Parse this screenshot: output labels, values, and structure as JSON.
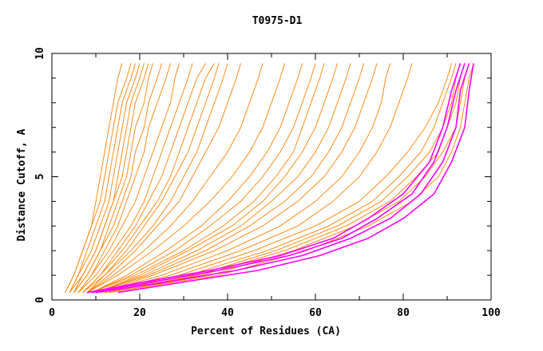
{
  "chart_data": {
    "type": "line",
    "title": "T0975-D1",
    "xlabel": "Percent of Residues (CA)",
    "ylabel": "Distance Cutoff, A",
    "xlim": [
      0,
      100
    ],
    "ylim": [
      0,
      10
    ],
    "x_ticks": [
      "0",
      "20",
      "40",
      "60",
      "80",
      "100"
    ],
    "y_ticks": [
      "0",
      "5",
      "10"
    ],
    "colors": {
      "orange": "#ff8000",
      "magenta": "#ff00ff",
      "axis": "#000000"
    },
    "series": [
      {
        "group": "orange",
        "x": [
          3,
          5,
          7,
          9,
          10,
          11,
          12,
          13,
          14,
          15,
          16
        ],
        "y": [
          0.3,
          1.0,
          2.0,
          3.0,
          4.0,
          5.0,
          6.0,
          7.0,
          8.0,
          9.0,
          9.6
        ]
      },
      {
        "group": "orange",
        "x": [
          3,
          5,
          7,
          9,
          11,
          12,
          13,
          14,
          15,
          17,
          18
        ],
        "y": [
          0.3,
          1.0,
          2.0,
          3.0,
          4.0,
          5.0,
          6.0,
          7.0,
          8.0,
          9.0,
          9.6
        ]
      },
      {
        "group": "orange",
        "x": [
          4,
          6,
          8,
          10,
          12,
          13,
          14,
          15,
          16,
          18,
          19
        ],
        "y": [
          0.3,
          1.0,
          2.0,
          3.0,
          4.0,
          5.0,
          6.0,
          7.0,
          8.0,
          9.0,
          9.6
        ]
      },
      {
        "group": "orange",
        "x": [
          4,
          6,
          9,
          11,
          13,
          14,
          15,
          16,
          17,
          19,
          20
        ],
        "y": [
          0.3,
          1.0,
          2.0,
          3.0,
          4.0,
          5.0,
          6.0,
          7.0,
          8.0,
          9.0,
          9.6
        ]
      },
      {
        "group": "orange",
        "x": [
          4,
          7,
          10,
          12,
          14,
          15,
          16,
          17,
          18,
          20,
          21
        ],
        "y": [
          0.3,
          1.0,
          2.0,
          3.0,
          4.0,
          5.0,
          6.0,
          7.0,
          8.0,
          9.0,
          9.6
        ]
      },
      {
        "group": "orange",
        "x": [
          5,
          7,
          10,
          12,
          14,
          16,
          17,
          18,
          19,
          21,
          22
        ],
        "y": [
          0.3,
          1.0,
          2.0,
          3.0,
          4.0,
          5.0,
          6.0,
          7.0,
          8.0,
          9.0,
          9.6
        ]
      },
      {
        "group": "orange",
        "x": [
          5,
          8,
          11,
          13,
          15,
          17,
          18,
          19,
          21,
          22,
          23
        ],
        "y": [
          0.3,
          1.0,
          2.0,
          3.0,
          4.0,
          5.0,
          6.0,
          7.0,
          8.0,
          9.0,
          9.6
        ]
      },
      {
        "group": "orange",
        "x": [
          5,
          8,
          11,
          14,
          16,
          18,
          19,
          21,
          22,
          24,
          25
        ],
        "y": [
          0.3,
          1.0,
          2.0,
          3.0,
          4.0,
          5.0,
          6.0,
          7.0,
          8.0,
          9.0,
          9.6
        ]
      },
      {
        "group": "orange",
        "x": [
          6,
          9,
          12,
          15,
          17,
          19,
          21,
          22,
          24,
          26,
          27
        ],
        "y": [
          0.3,
          1.0,
          2.0,
          3.0,
          4.0,
          5.0,
          6.0,
          7.0,
          8.0,
          9.0,
          9.6
        ]
      },
      {
        "group": "orange",
        "x": [
          6,
          9,
          13,
          16,
          19,
          21,
          23,
          25,
          27,
          28,
          29
        ],
        "y": [
          0.3,
          1.0,
          2.0,
          3.0,
          4.0,
          5.0,
          6.0,
          7.0,
          8.0,
          9.0,
          9.6
        ]
      },
      {
        "group": "orange",
        "x": [
          6,
          10,
          14,
          18,
          21,
          23,
          25,
          27,
          29,
          31,
          32
        ],
        "y": [
          0.3,
          1.0,
          2.0,
          3.0,
          4.0,
          5.0,
          6.0,
          7.0,
          8.0,
          9.0,
          9.6
        ]
      },
      {
        "group": "orange",
        "x": [
          7,
          11,
          15,
          19,
          22,
          25,
          27,
          29,
          31,
          33,
          35
        ],
        "y": [
          0.3,
          1.0,
          2.0,
          3.0,
          4.0,
          5.0,
          6.0,
          7.0,
          8.0,
          9.0,
          9.6
        ]
      },
      {
        "group": "orange",
        "x": [
          7,
          11,
          16,
          20,
          24,
          27,
          29,
          31,
          33,
          35,
          37
        ],
        "y": [
          0.3,
          1.0,
          2.0,
          3.0,
          4.0,
          5.0,
          6.0,
          7.0,
          8.0,
          9.0,
          9.6
        ]
      },
      {
        "group": "orange",
        "x": [
          7,
          12,
          17,
          21,
          25,
          28,
          31,
          33,
          35,
          37,
          38
        ],
        "y": [
          0.3,
          1.0,
          2.0,
          3.0,
          4.0,
          5.0,
          6.0,
          7.0,
          8.0,
          9.0,
          9.6
        ]
      },
      {
        "group": "orange",
        "x": [
          8,
          12,
          18,
          23,
          27,
          30,
          33,
          35,
          37,
          39,
          40
        ],
        "y": [
          0.3,
          1.0,
          2.0,
          3.0,
          4.0,
          5.0,
          6.0,
          7.0,
          8.0,
          9.0,
          9.6
        ]
      },
      {
        "group": "orange",
        "x": [
          8,
          13,
          19,
          24,
          29,
          32,
          35,
          38,
          40,
          42,
          43
        ],
        "y": [
          0.3,
          1.0,
          2.0,
          3.0,
          4.0,
          5.0,
          6.0,
          7.0,
          8.0,
          9.0,
          9.6
        ]
      },
      {
        "group": "orange",
        "x": [
          8,
          14,
          21,
          27,
          32,
          36,
          40,
          43,
          45,
          47,
          48
        ],
        "y": [
          0.3,
          1.0,
          2.0,
          3.0,
          4.0,
          5.0,
          6.0,
          7.0,
          8.0,
          9.0,
          9.6
        ]
      },
      {
        "group": "orange",
        "x": [
          8,
          15,
          23,
          30,
          36,
          41,
          45,
          48,
          50,
          52,
          53
        ],
        "y": [
          0.3,
          1.0,
          2.0,
          3.0,
          4.0,
          5.0,
          6.0,
          7.0,
          8.0,
          9.0,
          9.6
        ]
      },
      {
        "group": "orange",
        "x": [
          9,
          17,
          26,
          34,
          40,
          45,
          49,
          52,
          54,
          56,
          57
        ],
        "y": [
          0.3,
          1.0,
          2.0,
          3.0,
          4.0,
          5.0,
          6.0,
          7.0,
          8.0,
          9.0,
          9.6
        ]
      },
      {
        "group": "orange",
        "x": [
          9,
          18,
          28,
          36,
          43,
          48,
          52,
          55,
          57,
          59,
          60
        ],
        "y": [
          0.3,
          1.0,
          2.0,
          3.0,
          4.0,
          5.0,
          6.0,
          7.0,
          8.0,
          9.0,
          9.6
        ]
      },
      {
        "group": "orange",
        "x": [
          9,
          19,
          30,
          39,
          46,
          51,
          55,
          57,
          59,
          61,
          62
        ],
        "y": [
          0.3,
          1.0,
          2.0,
          3.0,
          4.0,
          5.0,
          6.0,
          7.0,
          8.0,
          9.0,
          9.6
        ]
      },
      {
        "group": "orange",
        "x": [
          10,
          20,
          31,
          41,
          48,
          53,
          57,
          60,
          62,
          64,
          65
        ],
        "y": [
          0.3,
          1.0,
          2.0,
          3.0,
          4.0,
          5.0,
          6.0,
          7.0,
          8.0,
          9.0,
          9.6
        ]
      },
      {
        "group": "orange",
        "x": [
          10,
          21,
          33,
          43,
          50,
          56,
          60,
          63,
          65,
          67,
          68
        ],
        "y": [
          0.3,
          1.0,
          2.0,
          3.0,
          4.0,
          5.0,
          6.0,
          7.0,
          8.0,
          9.0,
          9.6
        ]
      },
      {
        "group": "orange",
        "x": [
          10,
          22,
          35,
          45,
          53,
          59,
          63,
          66,
          68,
          70,
          71
        ],
        "y": [
          0.3,
          1.0,
          2.0,
          3.0,
          4.0,
          5.0,
          6.0,
          7.0,
          8.0,
          9.0,
          9.6
        ]
      },
      {
        "group": "orange",
        "x": [
          11,
          23,
          37,
          48,
          56,
          62,
          66,
          69,
          71,
          73,
          74
        ],
        "y": [
          0.3,
          1.0,
          2.0,
          3.0,
          4.0,
          5.0,
          6.0,
          7.0,
          8.0,
          9.0,
          9.6
        ]
      },
      {
        "group": "orange",
        "x": [
          11,
          25,
          40,
          52,
          60,
          66,
          70,
          73,
          75,
          76,
          77
        ],
        "y": [
          0.3,
          1.0,
          2.0,
          3.0,
          4.0,
          5.0,
          6.0,
          7.0,
          8.0,
          9.0,
          9.6
        ]
      },
      {
        "group": "orange",
        "x": [
          11,
          27,
          43,
          56,
          64,
          70,
          74,
          77,
          79,
          81,
          82
        ],
        "y": [
          0.3,
          1.0,
          2.0,
          3.0,
          4.0,
          5.0,
          6.0,
          7.0,
          8.0,
          9.0,
          9.6
        ]
      },
      {
        "group": "orange",
        "x": [
          11,
          29,
          46,
          60,
          70,
          76,
          81,
          85,
          88,
          90,
          91
        ],
        "y": [
          0.3,
          1.0,
          2.0,
          3.0,
          4.0,
          5.0,
          6.0,
          7.0,
          8.0,
          9.0,
          9.6
        ]
      },
      {
        "group": "orange",
        "x": [
          12,
          31,
          49,
          63,
          73,
          79,
          84,
          87,
          89,
          91,
          92
        ],
        "y": [
          0.3,
          1.0,
          2.0,
          3.0,
          4.0,
          5.0,
          6.0,
          7.0,
          8.0,
          9.0,
          9.6
        ]
      },
      {
        "group": "orange",
        "x": [
          12,
          33,
          51,
          65,
          75,
          81,
          86,
          89,
          91,
          92,
          93
        ],
        "y": [
          0.3,
          1.0,
          2.0,
          3.0,
          4.0,
          5.0,
          6.0,
          7.0,
          8.0,
          9.0,
          9.6
        ]
      },
      {
        "group": "orange",
        "x": [
          12,
          34,
          53,
          67,
          77,
          83,
          88,
          90,
          92,
          93,
          94
        ],
        "y": [
          0.3,
          1.0,
          2.0,
          3.0,
          4.0,
          5.0,
          6.0,
          7.0,
          8.0,
          9.0,
          9.6
        ]
      },
      {
        "group": "orange",
        "x": [
          13,
          36,
          55,
          69,
          79,
          85,
          89,
          92,
          93,
          94,
          95
        ],
        "y": [
          0.3,
          1.0,
          2.0,
          3.0,
          4.0,
          5.0,
          6.0,
          7.0,
          8.0,
          9.0,
          9.6
        ]
      },
      {
        "group": "orange",
        "x": [
          13,
          38,
          58,
          72,
          82,
          88,
          91,
          93,
          94,
          95,
          96
        ],
        "y": [
          0.3,
          1.0,
          2.0,
          3.0,
          4.0,
          5.0,
          6.0,
          7.0,
          8.0,
          9.0,
          9.6
        ]
      },
      {
        "group": "magenta",
        "x": [
          8,
          20,
          36,
          52,
          64,
          72,
          80,
          86,
          89,
          91,
          93
        ],
        "y": [
          0.3,
          0.7,
          1.2,
          1.8,
          2.5,
          3.3,
          4.3,
          5.6,
          7.0,
          8.5,
          9.6
        ]
      },
      {
        "group": "magenta",
        "x": [
          9,
          22,
          38,
          54,
          66,
          74,
          82,
          87,
          90,
          92,
          94
        ],
        "y": [
          0.3,
          0.7,
          1.2,
          1.8,
          2.5,
          3.3,
          4.3,
          5.6,
          7.0,
          8.5,
          9.6
        ]
      },
      {
        "group": "magenta",
        "x": [
          10,
          25,
          42,
          57,
          68,
          77,
          84,
          89,
          92,
          93,
          95
        ],
        "y": [
          0.3,
          0.7,
          1.2,
          1.8,
          2.5,
          3.3,
          4.3,
          5.6,
          7.0,
          8.5,
          9.6
        ]
      },
      {
        "group": "magenta",
        "x": [
          15,
          29,
          47,
          61,
          72,
          80,
          87,
          91,
          94,
          95,
          96
        ],
        "y": [
          0.3,
          0.7,
          1.2,
          1.8,
          2.5,
          3.3,
          4.3,
          5.6,
          7.0,
          8.5,
          9.6
        ]
      }
    ]
  }
}
